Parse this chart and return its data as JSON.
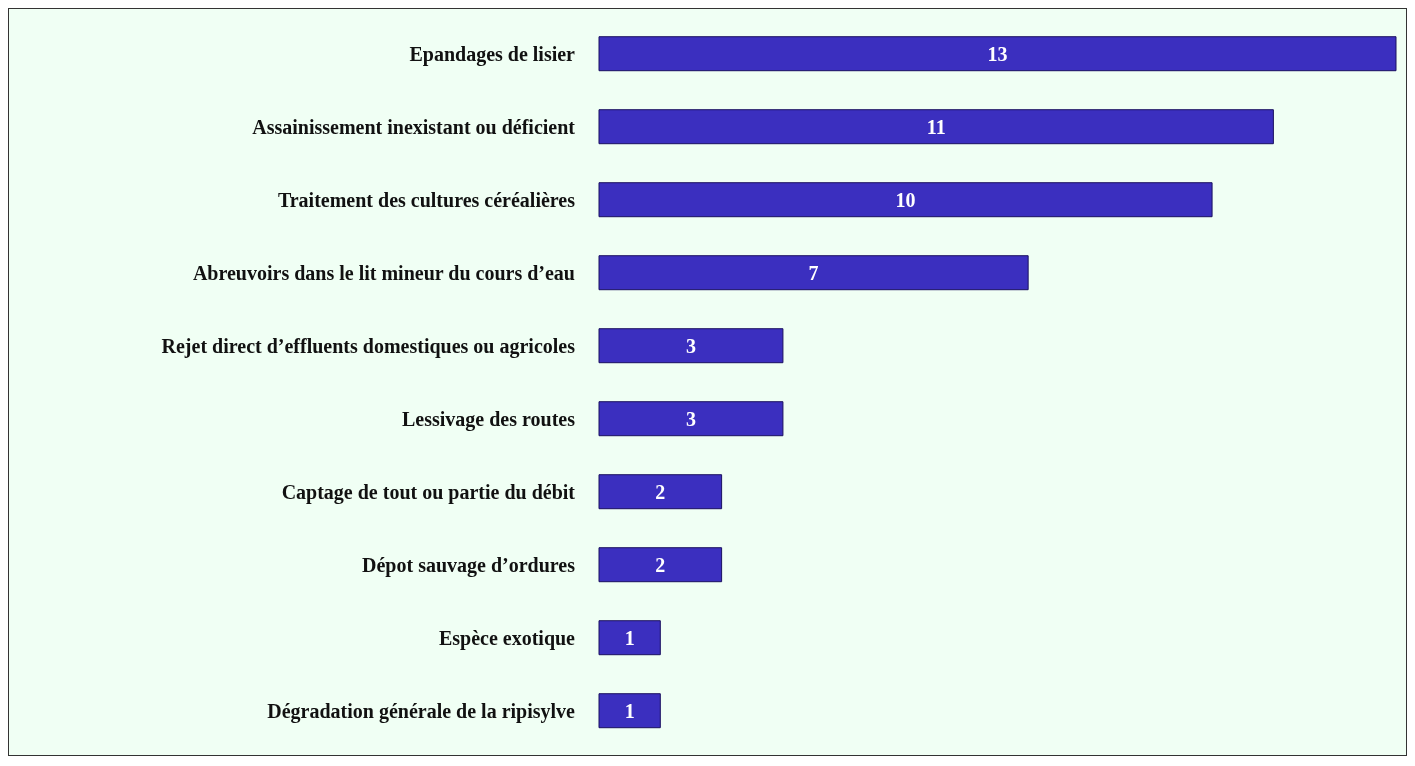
{
  "chart_data": {
    "type": "bar",
    "orientation": "horizontal",
    "categories": [
      "Epandages de lisier",
      "Assainissement inexistant ou déficient",
      "Traitement des cultures céréalières",
      "Abreuvoirs dans le lit mineur du cours d’eau",
      "Rejet direct d’effluents domestiques ou agricoles",
      "Lessivage des routes",
      "Captage de tout ou partie du débit",
      "Dépot sauvage d’ordures",
      "Espèce exotique",
      "Dégradation générale de la ripisylve"
    ],
    "values": [
      13,
      11,
      10,
      7,
      3,
      3,
      2,
      2,
      1,
      1
    ],
    "color": "#3b2fbf",
    "data_labels": true,
    "grid": false,
    "legend": false
  }
}
